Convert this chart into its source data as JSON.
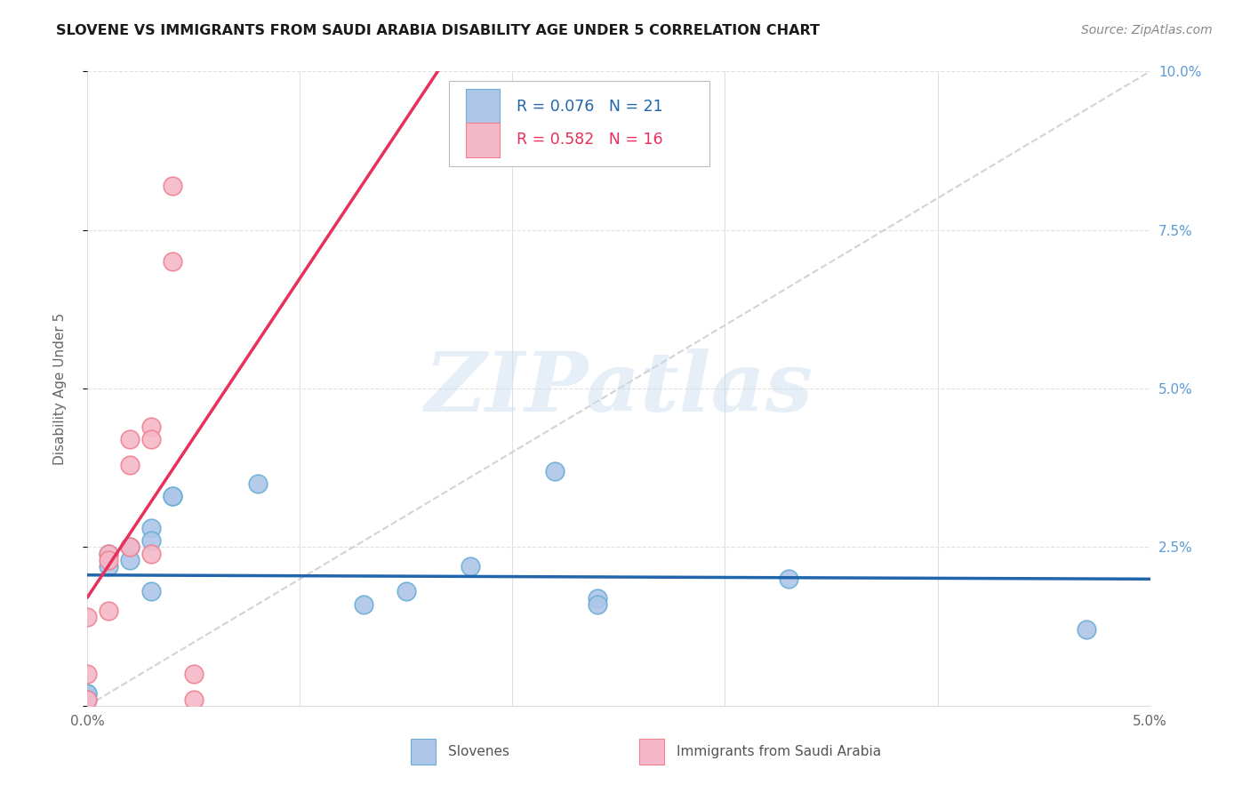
{
  "title": "SLOVENE VS IMMIGRANTS FROM SAUDI ARABIA DISABILITY AGE UNDER 5 CORRELATION CHART",
  "source": "Source: ZipAtlas.com",
  "ylabel": "Disability Age Under 5",
  "xlim": [
    0.0,
    0.05
  ],
  "ylim": [
    0.0,
    0.1
  ],
  "slovene_color": "#aec6e8",
  "saudi_color": "#f5b8c8",
  "slovene_edge": "#6aaed6",
  "saudi_edge": "#f08090",
  "trendline_slovene_color": "#2166ac",
  "trendline_saudi_color": "#e8305a",
  "diagonal_color": "#c8c8c8",
  "legend_slovene_color": "#2166ac",
  "legend_saudi_color": "#e8305a",
  "slovene_R": 0.076,
  "slovene_N": 21,
  "saudi_R": 0.582,
  "saudi_N": 16,
  "slovene_x": [
    0.0,
    0.0,
    0.0,
    0.001,
    0.001,
    0.002,
    0.002,
    0.003,
    0.003,
    0.003,
    0.004,
    0.004,
    0.008,
    0.013,
    0.015,
    0.018,
    0.022,
    0.024,
    0.024,
    0.033,
    0.047
  ],
  "slovene_y": [
    0.002,
    0.002,
    0.001,
    0.024,
    0.022,
    0.025,
    0.023,
    0.028,
    0.026,
    0.018,
    0.033,
    0.033,
    0.035,
    0.016,
    0.018,
    0.022,
    0.037,
    0.017,
    0.016,
    0.02,
    0.012
  ],
  "saudi_x": [
    0.0,
    0.0,
    0.0,
    0.001,
    0.001,
    0.001,
    0.002,
    0.002,
    0.002,
    0.003,
    0.003,
    0.003,
    0.004,
    0.004,
    0.005,
    0.005
  ],
  "saudi_y": [
    0.001,
    0.005,
    0.014,
    0.024,
    0.023,
    0.015,
    0.038,
    0.042,
    0.025,
    0.044,
    0.042,
    0.024,
    0.07,
    0.082,
    0.001,
    0.005
  ],
  "watermark": "ZIPatlas",
  "background_color": "#ffffff",
  "grid_color": "#e0e0e0"
}
